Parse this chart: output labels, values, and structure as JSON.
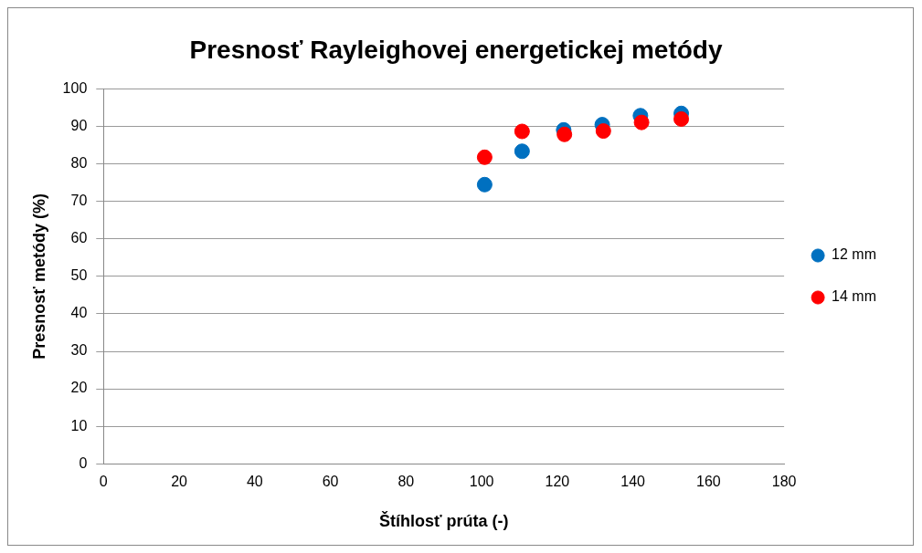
{
  "chart_data": {
    "type": "scatter",
    "title": "Presnosť Rayleighovej energetickej metódy",
    "xlabel": "Štíhlosť prúta (-)",
    "ylabel": "Presnosť metódy (%)",
    "series": [
      {
        "name": "12 mm",
        "color": "#0070c0",
        "x": [
          100.8,
          110.7,
          121.7,
          131.9,
          142,
          152.8
        ],
        "values": [
          74.5,
          83.4,
          89.1,
          90.5,
          92.9,
          93.5
        ]
      },
      {
        "name": "14 mm",
        "color": "#ff0000",
        "x": [
          100.8,
          110.7,
          121.9,
          132.2,
          142.3,
          152.8
        ],
        "values": [
          81.8,
          88.7,
          87.9,
          88.8,
          91.1,
          92.0
        ]
      }
    ],
    "xlim": [
      0,
      180
    ],
    "xticks": [
      0,
      20,
      40,
      60,
      80,
      100,
      120,
      140,
      160,
      180
    ],
    "ylim": [
      0,
      100
    ],
    "yticks": [
      0,
      10,
      20,
      30,
      40,
      50,
      60,
      70,
      80,
      90,
      100
    ],
    "grid": "y",
    "legend": "right",
    "marker": "circle"
  }
}
